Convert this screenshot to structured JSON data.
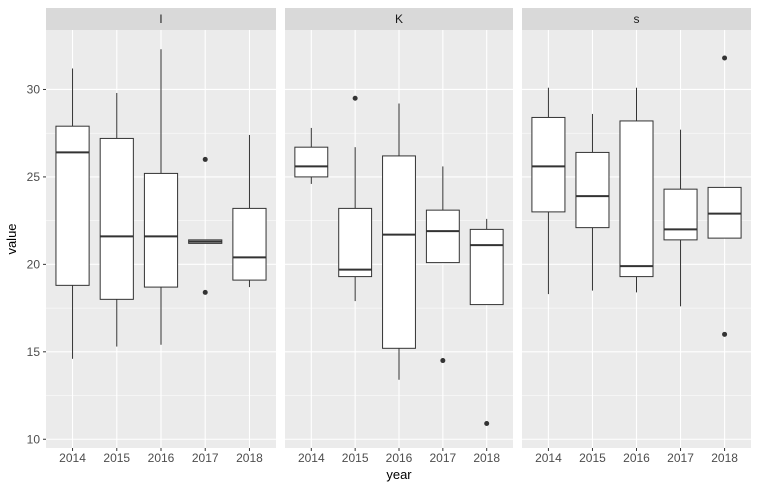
{
  "x_label": "year",
  "y_label": "value",
  "chart_data": [
    {
      "type": "box",
      "title": "l",
      "categories": [
        "2014",
        "2015",
        "2016",
        "2017",
        "2018"
      ],
      "boxes": [
        {
          "min": 14.6,
          "q1": 18.8,
          "median": 26.4,
          "q3": 27.9,
          "max": 31.2,
          "outliers": []
        },
        {
          "min": 15.3,
          "q1": 18.0,
          "median": 21.6,
          "q3": 27.2,
          "max": 29.8,
          "outliers": []
        },
        {
          "min": 15.4,
          "q1": 18.7,
          "median": 21.6,
          "q3": 25.2,
          "max": 32.3,
          "outliers": []
        },
        {
          "min": 21.2,
          "q1": 21.2,
          "median": 21.3,
          "q3": 21.4,
          "max": 21.4,
          "outliers": [
            26.0,
            18.4
          ]
        },
        {
          "min": 18.7,
          "q1": 19.1,
          "median": 20.4,
          "q3": 23.2,
          "max": 27.4,
          "outliers": []
        }
      ],
      "ylim": [
        9.5,
        33.4
      ],
      "yticks": [
        10,
        15,
        20,
        25,
        30
      ],
      "grid": true
    },
    {
      "type": "box",
      "title": "K",
      "categories": [
        "2014",
        "2015",
        "2016",
        "2017",
        "2018"
      ],
      "boxes": [
        {
          "min": 24.6,
          "q1": 25.0,
          "median": 25.6,
          "q3": 26.7,
          "max": 27.8,
          "outliers": []
        },
        {
          "min": 17.9,
          "q1": 19.3,
          "median": 19.7,
          "q3": 23.2,
          "max": 26.7,
          "outliers": [
            29.5
          ]
        },
        {
          "min": 13.4,
          "q1": 15.2,
          "median": 21.7,
          "q3": 26.2,
          "max": 29.2,
          "outliers": []
        },
        {
          "min": 20.1,
          "q1": 20.1,
          "median": 21.9,
          "q3": 23.1,
          "max": 25.6,
          "outliers": [
            14.5
          ]
        },
        {
          "min": 17.7,
          "q1": 17.7,
          "median": 21.1,
          "q3": 22.0,
          "max": 22.6,
          "outliers": [
            10.9
          ]
        }
      ],
      "ylim": [
        9.5,
        33.4
      ],
      "yticks": [
        10,
        15,
        20,
        25,
        30
      ],
      "grid": true
    },
    {
      "type": "box",
      "title": "s",
      "categories": [
        "2014",
        "2015",
        "2016",
        "2017",
        "2018"
      ],
      "boxes": [
        {
          "min": 18.3,
          "q1": 23.0,
          "median": 25.6,
          "q3": 28.4,
          "max": 30.1,
          "outliers": []
        },
        {
          "min": 18.5,
          "q1": 22.1,
          "median": 23.9,
          "q3": 26.4,
          "max": 28.6,
          "outliers": []
        },
        {
          "min": 18.4,
          "q1": 19.3,
          "median": 19.9,
          "q3": 28.2,
          "max": 30.1,
          "outliers": []
        },
        {
          "min": 17.6,
          "q1": 21.4,
          "median": 22.0,
          "q3": 24.3,
          "max": 27.7,
          "outliers": []
        },
        {
          "min": 21.5,
          "q1": 21.5,
          "median": 22.9,
          "q3": 24.4,
          "max": 24.4,
          "outliers": [
            31.8,
            16.0
          ]
        }
      ],
      "ylim": [
        9.5,
        33.4
      ],
      "yticks": [
        10,
        15,
        20,
        25,
        30
      ],
      "grid": true
    }
  ]
}
